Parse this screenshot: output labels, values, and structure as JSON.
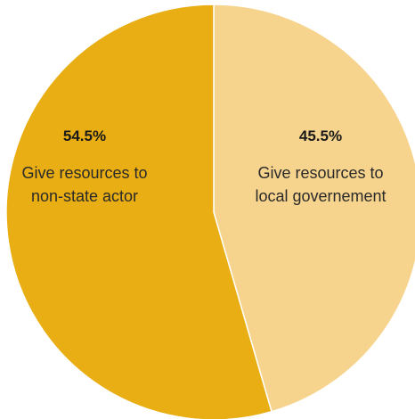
{
  "chart_data": {
    "type": "pie",
    "title": "",
    "slices": [
      {
        "value": 45.5,
        "value_label": "45.5%",
        "label_lines": [
          "Give resources to",
          "local governement"
        ],
        "color": "#f7d48d"
      },
      {
        "value": 54.5,
        "value_label": "54.5%",
        "label_lines": [
          "Give resources to",
          "non-state actor"
        ],
        "color": "#e9ae14"
      }
    ],
    "start_angle_deg": 0,
    "direction": "clockwise"
  }
}
